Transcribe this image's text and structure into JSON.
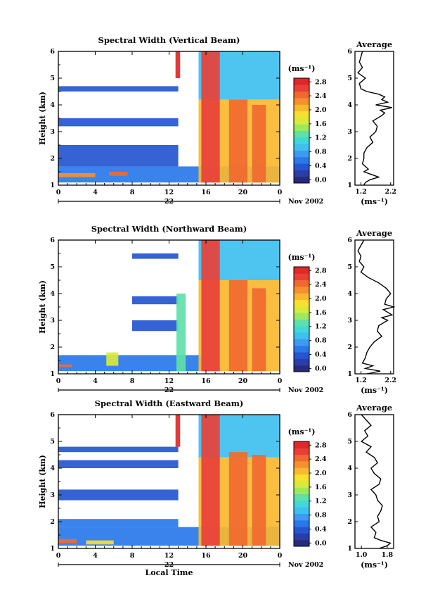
{
  "figure": {
    "x_axis_title": "Local Time",
    "date_label": "Nov 2002",
    "date_mark": "22"
  },
  "colors": {
    "colorbar": [
      "#2a2a7a",
      "#2b3ea8",
      "#2456cf",
      "#2a78ea",
      "#3d9bf0",
      "#3fc0f0",
      "#40d8d8",
      "#5ee0a8",
      "#9ee860",
      "#d8ea3c",
      "#f8e030",
      "#f8b830",
      "#f59030",
      "#f06a30",
      "#e84038",
      "#e02828"
    ]
  },
  "chart_data": [
    {
      "type": "heatmap",
      "title": "Spectral Width (Vertical Beam)",
      "xlabel": "",
      "ylabel": "Height (km)",
      "xlim": [
        0,
        24
      ],
      "ylim": [
        1,
        6
      ],
      "xticks": [
        "0",
        "4",
        "8",
        "12",
        "16",
        "20",
        "0"
      ],
      "yticks": [
        "1",
        "2",
        "3",
        "4",
        "5",
        "6"
      ],
      "colorbar": {
        "unit": "(ms⁻¹)",
        "ticks": [
          "0.0",
          "0.4",
          "0.8",
          "1.2",
          "1.6",
          "2.0",
          "2.4",
          "2.8"
        ],
        "range": [
          0,
          3.0
        ]
      },
      "echo_regions": [
        {
          "x": [
            0,
            24
          ],
          "y": [
            1.1,
            1.7
          ],
          "level": 0.7
        },
        {
          "x": [
            0,
            4
          ],
          "y": [
            1.3,
            1.45
          ],
          "level": 2.4
        },
        {
          "x": [
            5.5,
            7.5
          ],
          "y": [
            1.35,
            1.5
          ],
          "level": 2.6
        },
        {
          "x": [
            0,
            13
          ],
          "y": [
            1.7,
            2.5
          ],
          "level": 0.5
        },
        {
          "x": [
            0,
            13
          ],
          "y": [
            3.2,
            3.5
          ],
          "level": 0.5
        },
        {
          "x": [
            0,
            13
          ],
          "y": [
            4.5,
            4.7
          ],
          "level": 0.5
        },
        {
          "x": [
            12.7,
            13.2
          ],
          "y": [
            5.0,
            6.0
          ],
          "level": 2.9
        },
        {
          "x": [
            15.2,
            24
          ],
          "y": [
            4.2,
            6.0
          ],
          "level": 1.0
        },
        {
          "x": [
            15.2,
            24
          ],
          "y": [
            1.1,
            4.2
          ],
          "level": 2.2
        },
        {
          "x": [
            15.5,
            17.5
          ],
          "y": [
            1.1,
            6.0
          ],
          "level": 2.7
        },
        {
          "x": [
            18.5,
            20.5
          ],
          "y": [
            1.1,
            4.2
          ],
          "level": 2.5
        },
        {
          "x": [
            21.0,
            22.5
          ],
          "y": [
            1.1,
            4.0
          ],
          "level": 2.6
        }
      ],
      "profile": {
        "title": "Average",
        "xlabel": "(ms⁻¹)",
        "xticks": [
          "1.2",
          "2.2"
        ],
        "xlim": [
          1.0,
          2.3
        ],
        "height": [
          1.0,
          1.1,
          1.2,
          1.3,
          1.4,
          1.5,
          1.6,
          1.8,
          2.0,
          2.2,
          2.4,
          2.6,
          2.8,
          3.0,
          3.2,
          3.4,
          3.6,
          3.7,
          3.8,
          3.9,
          4.0,
          4.1,
          4.2,
          4.3,
          4.4,
          4.5,
          4.6,
          4.8,
          5.0,
          5.2,
          5.4,
          5.6,
          5.8,
          6.0
        ],
        "value": [
          1.3,
          1.35,
          1.5,
          1.8,
          1.55,
          1.3,
          1.45,
          1.25,
          1.3,
          1.3,
          1.4,
          1.6,
          1.5,
          1.7,
          1.75,
          1.6,
          1.9,
          2.0,
          1.85,
          2.25,
          1.7,
          2.1,
          1.9,
          2.0,
          1.8,
          1.4,
          1.2,
          1.15,
          1.35,
          1.1,
          1.25,
          1.15,
          1.2,
          1.25
        ]
      }
    },
    {
      "type": "heatmap",
      "title": "Spectral Width (Northward Beam)",
      "xlabel": "",
      "ylabel": "Height (km)",
      "xlim": [
        0,
        24
      ],
      "ylim": [
        1,
        6
      ],
      "xticks": [
        "0",
        "4",
        "8",
        "12",
        "16",
        "20",
        "0"
      ],
      "yticks": [
        "1",
        "2",
        "3",
        "4",
        "5",
        "6"
      ],
      "colorbar": {
        "unit": "(ms⁻¹)",
        "ticks": [
          "0.0",
          "0.4",
          "0.8",
          "1.2",
          "1.6",
          "2.0",
          "2.4",
          "2.8"
        ],
        "range": [
          0,
          3.0
        ]
      },
      "echo_regions": [
        {
          "x": [
            0,
            16
          ],
          "y": [
            1.1,
            1.7
          ],
          "level": 0.6
        },
        {
          "x": [
            0,
            1.5
          ],
          "y": [
            1.25,
            1.35
          ],
          "level": 2.6
        },
        {
          "x": [
            5.2,
            6.5
          ],
          "y": [
            1.3,
            1.8
          ],
          "level": 1.8
        },
        {
          "x": [
            8,
            13
          ],
          "y": [
            2.6,
            3.0
          ],
          "level": 0.5
        },
        {
          "x": [
            8,
            13
          ],
          "y": [
            3.6,
            3.9
          ],
          "level": 0.5
        },
        {
          "x": [
            8,
            13
          ],
          "y": [
            5.3,
            5.5
          ],
          "level": 0.5
        },
        {
          "x": [
            12.8,
            13.8
          ],
          "y": [
            1.1,
            4.0
          ],
          "level": 1.4
        },
        {
          "x": [
            15.2,
            24
          ],
          "y": [
            4.5,
            6.0
          ],
          "level": 1.0
        },
        {
          "x": [
            15.2,
            24
          ],
          "y": [
            1.1,
            4.5
          ],
          "level": 2.2
        },
        {
          "x": [
            15.5,
            17.5
          ],
          "y": [
            1.1,
            6.0
          ],
          "level": 2.7
        },
        {
          "x": [
            18.5,
            20.5
          ],
          "y": [
            1.1,
            4.5
          ],
          "level": 2.5
        },
        {
          "x": [
            21.0,
            22.5
          ],
          "y": [
            1.1,
            4.2
          ],
          "level": 2.6
        }
      ],
      "profile": {
        "title": "Average",
        "xlabel": "(ms⁻¹)",
        "xticks": [
          "1.2",
          "2.2"
        ],
        "xlim": [
          1.0,
          2.3
        ],
        "height": [
          1.0,
          1.1,
          1.2,
          1.3,
          1.4,
          1.6,
          1.8,
          2.0,
          2.2,
          2.4,
          2.6,
          2.8,
          3.0,
          3.1,
          3.2,
          3.4,
          3.5,
          3.6,
          3.8,
          4.0,
          4.2,
          4.4,
          4.6,
          4.8,
          5.0,
          5.2,
          5.4,
          5.6,
          5.8,
          6.0
        ],
        "value": [
          1.4,
          1.85,
          1.35,
          1.6,
          1.25,
          1.35,
          1.4,
          1.5,
          1.65,
          1.9,
          1.75,
          1.8,
          2.1,
          1.9,
          2.25,
          1.95,
          2.3,
          2.0,
          2.05,
          2.2,
          2.05,
          1.8,
          1.45,
          1.2,
          1.3,
          1.15,
          1.2,
          1.1,
          1.2,
          1.3
        ]
      }
    },
    {
      "type": "heatmap",
      "title": "Spectral Width (Eastward Beam)",
      "xlabel": "Local Time",
      "ylabel": "Height (km)",
      "xlim": [
        0,
        24
      ],
      "ylim": [
        1,
        6
      ],
      "xticks": [
        "0",
        "4",
        "8",
        "12",
        "16",
        "20",
        "0"
      ],
      "yticks": [
        "1",
        "2",
        "3",
        "4",
        "5",
        "6"
      ],
      "colorbar": {
        "unit": "(ms⁻¹)",
        "ticks": [
          "0.0",
          "0.4",
          "0.8",
          "1.2",
          "1.6",
          "2.0",
          "2.4",
          "2.8"
        ],
        "range": [
          0,
          3.0
        ]
      },
      "echo_regions": [
        {
          "x": [
            0,
            24
          ],
          "y": [
            1.1,
            1.8
          ],
          "level": 0.7
        },
        {
          "x": [
            0,
            2
          ],
          "y": [
            1.2,
            1.35
          ],
          "level": 2.6
        },
        {
          "x": [
            3,
            6
          ],
          "y": [
            1.15,
            1.3
          ],
          "level": 2.0
        },
        {
          "x": [
            0,
            13
          ],
          "y": [
            1.8,
            2.1
          ],
          "level": 0.6
        },
        {
          "x": [
            0,
            13
          ],
          "y": [
            2.8,
            3.2
          ],
          "level": 0.5
        },
        {
          "x": [
            0,
            13
          ],
          "y": [
            4.0,
            4.3
          ],
          "level": 0.5
        },
        {
          "x": [
            0,
            13
          ],
          "y": [
            4.6,
            4.8
          ],
          "level": 0.4
        },
        {
          "x": [
            12.7,
            13.2
          ],
          "y": [
            4.8,
            6.0
          ],
          "level": 2.9
        },
        {
          "x": [
            15.2,
            24
          ],
          "y": [
            4.4,
            6.0
          ],
          "level": 1.0
        },
        {
          "x": [
            15.2,
            24
          ],
          "y": [
            1.1,
            4.4
          ],
          "level": 2.2
        },
        {
          "x": [
            15.5,
            17.5
          ],
          "y": [
            1.1,
            6.0
          ],
          "level": 2.7
        },
        {
          "x": [
            18.5,
            20.5
          ],
          "y": [
            1.1,
            4.6
          ],
          "level": 2.5
        },
        {
          "x": [
            21.0,
            22.5
          ],
          "y": [
            1.1,
            4.5
          ],
          "level": 2.6
        }
      ],
      "profile": {
        "title": "Average",
        "xlabel": "(ms⁻¹)",
        "xticks": [
          "1.0",
          "1.8"
        ],
        "xlim": [
          0.8,
          2.0
        ],
        "height": [
          1.0,
          1.1,
          1.2,
          1.3,
          1.4,
          1.6,
          1.8,
          2.0,
          2.2,
          2.4,
          2.6,
          2.8,
          3.0,
          3.2,
          3.4,
          3.6,
          3.8,
          4.0,
          4.2,
          4.4,
          4.6,
          4.8,
          5.0,
          5.2,
          5.4,
          5.6,
          5.8,
          6.0
        ],
        "value": [
          1.55,
          1.8,
          1.9,
          1.6,
          1.4,
          1.45,
          1.3,
          1.55,
          1.5,
          1.6,
          1.65,
          1.5,
          1.45,
          1.3,
          1.55,
          1.6,
          1.4,
          1.3,
          1.5,
          1.4,
          1.15,
          1.3,
          1.0,
          1.2,
          1.1,
          1.3,
          1.15,
          1.0
        ]
      }
    }
  ]
}
